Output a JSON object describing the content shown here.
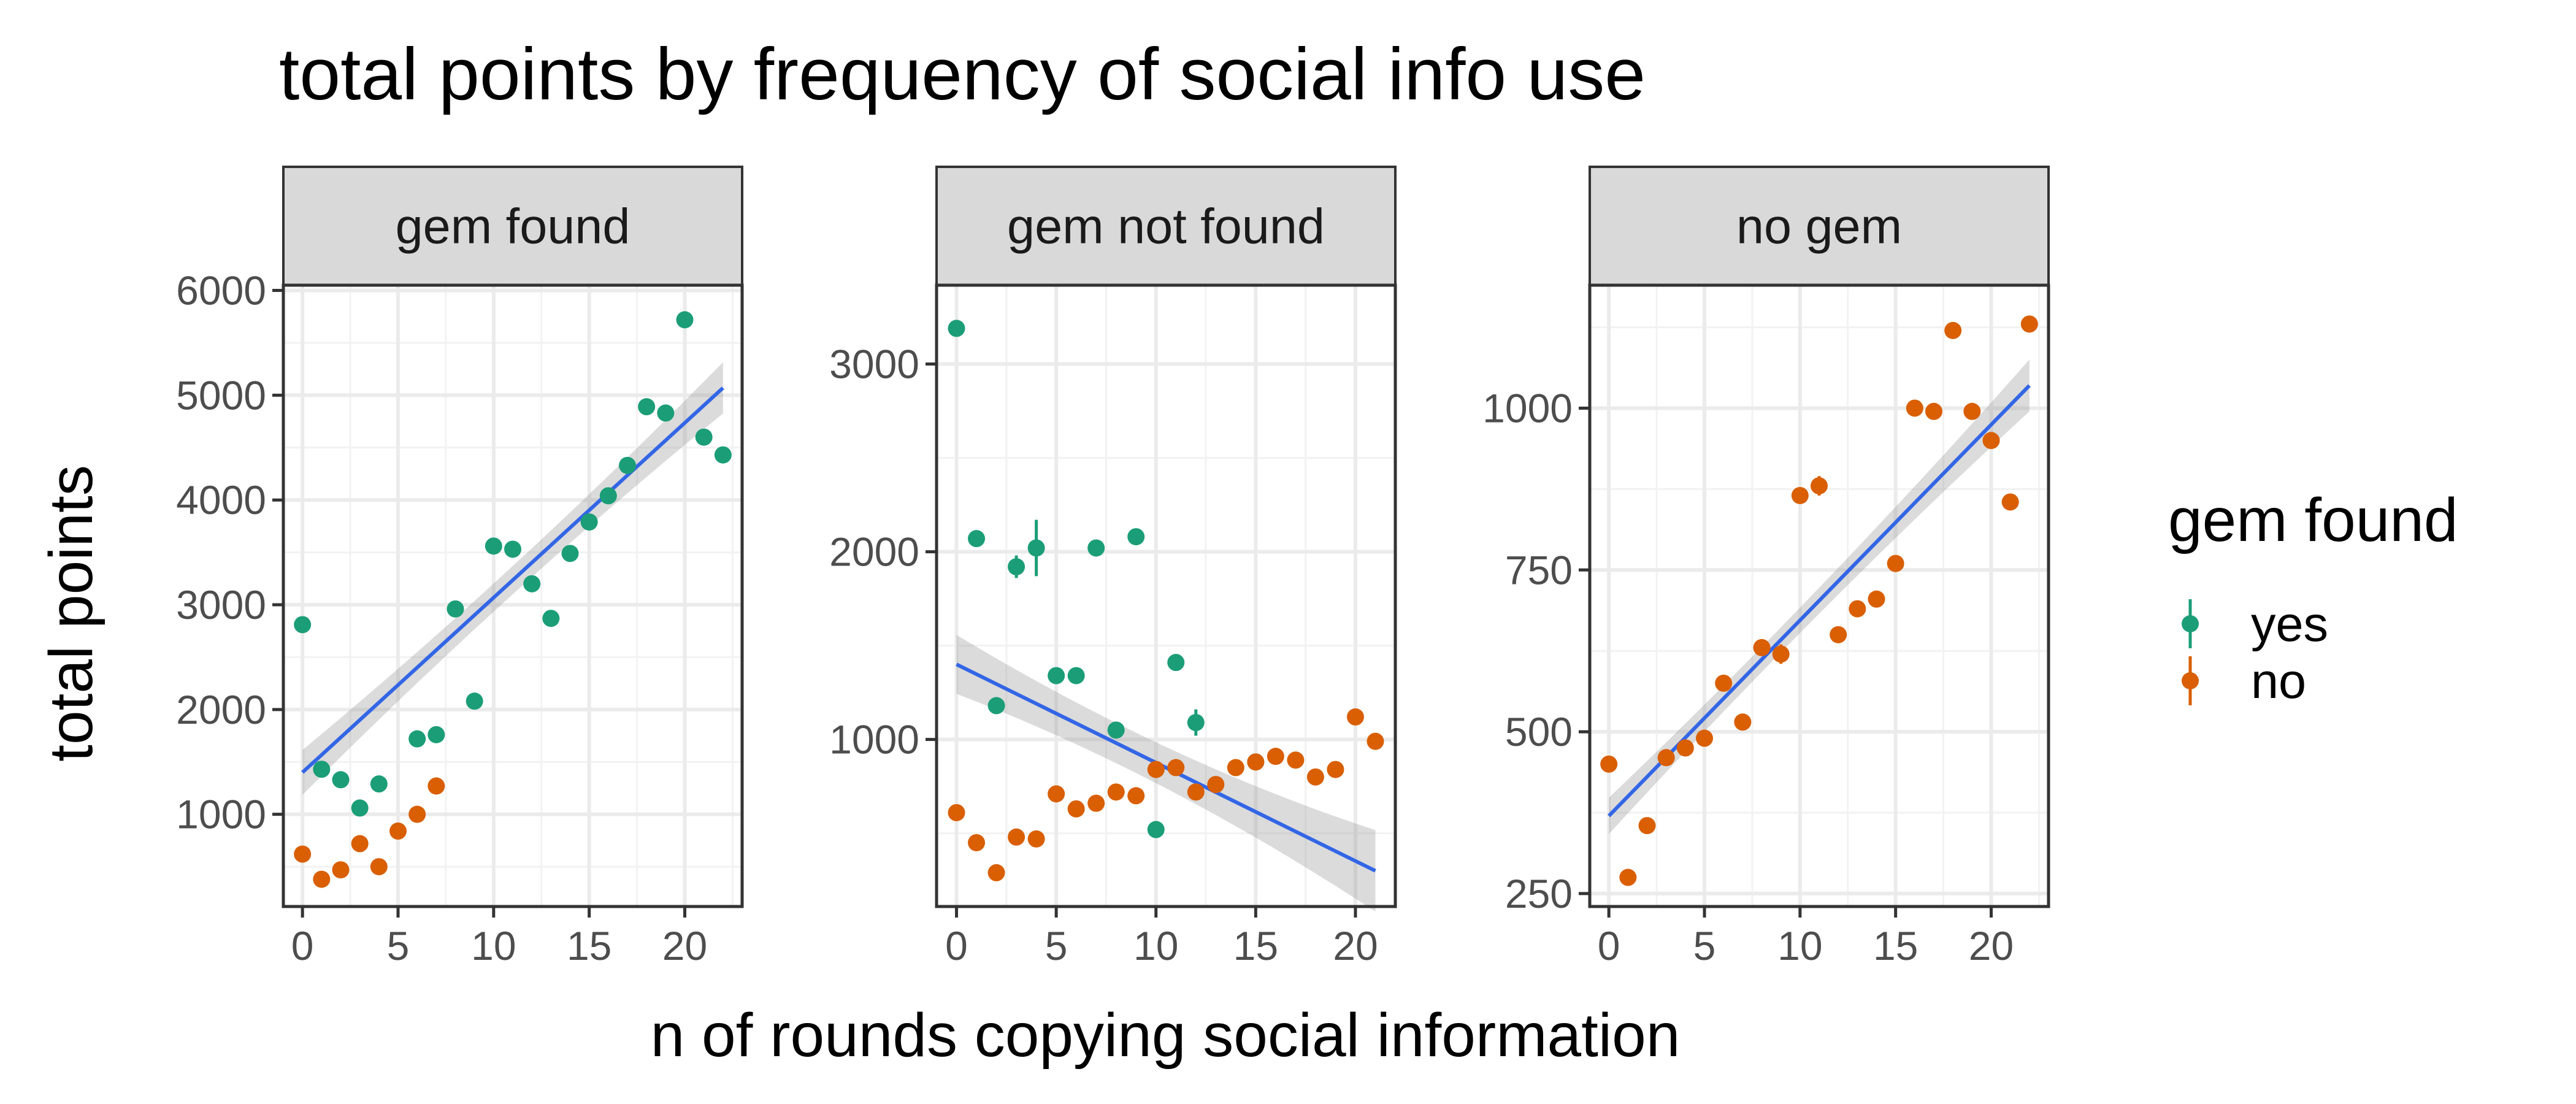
{
  "chart_data": {
    "type": "scatter",
    "title": "total points by frequency of social info use",
    "xlabel": "n of rounds copying social information",
    "ylabel": "total points",
    "legend": {
      "title": "gem found",
      "placement": "right",
      "entries": [
        {
          "name": "yes",
          "color": "#1b9e77"
        },
        {
          "name": "no",
          "color": "#d95f02"
        }
      ]
    },
    "trend_line_color": "#3366e6",
    "grid": true,
    "facets": [
      {
        "label": "gem found",
        "xlim": [
          -1.0,
          23.0
        ],
        "ylim": [
          120,
          6050
        ],
        "xticks": [
          0,
          5,
          10,
          15,
          20
        ],
        "yticks": [
          1000,
          2000,
          3000,
          4000,
          5000,
          6000
        ],
        "series": [
          {
            "name": "yes",
            "points": [
              [
                0,
                2810
              ],
              [
                1,
                1430
              ],
              [
                2,
                1330
              ],
              [
                3,
                1060
              ],
              [
                4,
                1290
              ],
              [
                6,
                1720
              ],
              [
                7,
                1760
              ],
              [
                8,
                2960
              ],
              [
                9,
                2080
              ],
              [
                10,
                3560
              ],
              [
                11,
                3530
              ],
              [
                12,
                3200
              ],
              [
                13,
                2870
              ],
              [
                14,
                3490
              ],
              [
                15,
                3790
              ],
              [
                16,
                4040
              ],
              [
                17,
                4330
              ],
              [
                18,
                4890
              ],
              [
                19,
                4830
              ],
              [
                20,
                5720
              ],
              [
                21,
                4600
              ],
              [
                22,
                4430
              ]
            ]
          },
          {
            "name": "no",
            "points": [
              [
                0,
                620
              ],
              [
                1,
                380
              ],
              [
                2,
                470
              ],
              [
                3,
                720
              ],
              [
                4,
                500
              ],
              [
                5,
                840
              ],
              [
                6,
                1000
              ],
              [
                7,
                1270
              ]
            ]
          }
        ],
        "trend": {
          "x": [
            0,
            22
          ],
          "y": [
            1400,
            5070
          ],
          "ci": [
            120,
            150
          ]
        }
      },
      {
        "label": "gem not found",
        "xlim": [
          -1.0,
          22.0
        ],
        "ylim": [
          110,
          3420
        ],
        "xticks": [
          0,
          5,
          10,
          15,
          20
        ],
        "yticks": [
          1000,
          2000,
          3000
        ],
        "series": [
          {
            "name": "yes",
            "points": [
              [
                0,
                3190,
                0
              ],
              [
                1,
                2070,
                0
              ],
              [
                2,
                1180,
                0
              ],
              [
                3,
                1920,
                60
              ],
              [
                4,
                2020,
                150
              ],
              [
                5,
                1340,
                0
              ],
              [
                6,
                1340,
                0
              ],
              [
                7,
                2020,
                0
              ],
              [
                8,
                1050,
                0
              ],
              [
                9,
                2080,
                0
              ],
              [
                10,
                520,
                0
              ],
              [
                11,
                1410,
                0
              ],
              [
                12,
                1090,
                70
              ],
              [
                15,
                880,
                0
              ]
            ]
          },
          {
            "name": "no",
            "points": [
              [
                0,
                610
              ],
              [
                1,
                450
              ],
              [
                2,
                290
              ],
              [
                3,
                480
              ],
              [
                4,
                470
              ],
              [
                5,
                710
              ],
              [
                6,
                630
              ],
              [
                7,
                660
              ],
              [
                8,
                720
              ],
              [
                9,
                700
              ],
              [
                10,
                840
              ],
              [
                11,
                850
              ],
              [
                12,
                720
              ],
              [
                13,
                760
              ],
              [
                14,
                850
              ],
              [
                15,
                880
              ],
              [
                16,
                910
              ],
              [
                17,
                890
              ],
              [
                18,
                800
              ],
              [
                19,
                840
              ],
              [
                20,
                1120
              ],
              [
                21,
                990
              ]
            ]
          }
        ],
        "trend": {
          "x": [
            0,
            21
          ],
          "y": [
            1400,
            300
          ],
          "ci": [
            80,
            140
          ]
        }
      },
      {
        "label": "no gem",
        "xlim": [
          -1.0,
          23.0
        ],
        "ylim": [
          230,
          1190
        ],
        "xticks": [
          0,
          5,
          10,
          15,
          20
        ],
        "yticks": [
          250,
          500,
          750,
          1000
        ],
        "series": [
          {
            "name": "no",
            "points": [
              [
                0,
                450,
                0
              ],
              [
                1,
                275,
                0
              ],
              [
                2,
                355,
                0
              ],
              [
                3,
                460,
                0
              ],
              [
                4,
                475,
                0
              ],
              [
                5,
                490,
                0
              ],
              [
                6,
                575,
                0
              ],
              [
                7,
                515,
                0
              ],
              [
                8,
                630,
                0
              ],
              [
                9,
                620,
                15
              ],
              [
                10,
                865,
                0
              ],
              [
                11,
                880,
                15
              ],
              [
                12,
                650,
                0
              ],
              [
                13,
                690,
                0
              ],
              [
                14,
                705,
                0
              ],
              [
                15,
                760,
                0
              ],
              [
                16,
                1000,
                0
              ],
              [
                17,
                995,
                0
              ],
              [
                18,
                1120,
                0
              ],
              [
                19,
                995,
                0
              ],
              [
                20,
                950,
                0
              ],
              [
                21,
                855,
                0
              ],
              [
                22,
                1130,
                0
              ]
            ]
          }
        ],
        "trend": {
          "x": [
            0,
            22
          ],
          "y": [
            370,
            1035
          ],
          "ci": [
            14,
            26
          ]
        }
      }
    ]
  }
}
